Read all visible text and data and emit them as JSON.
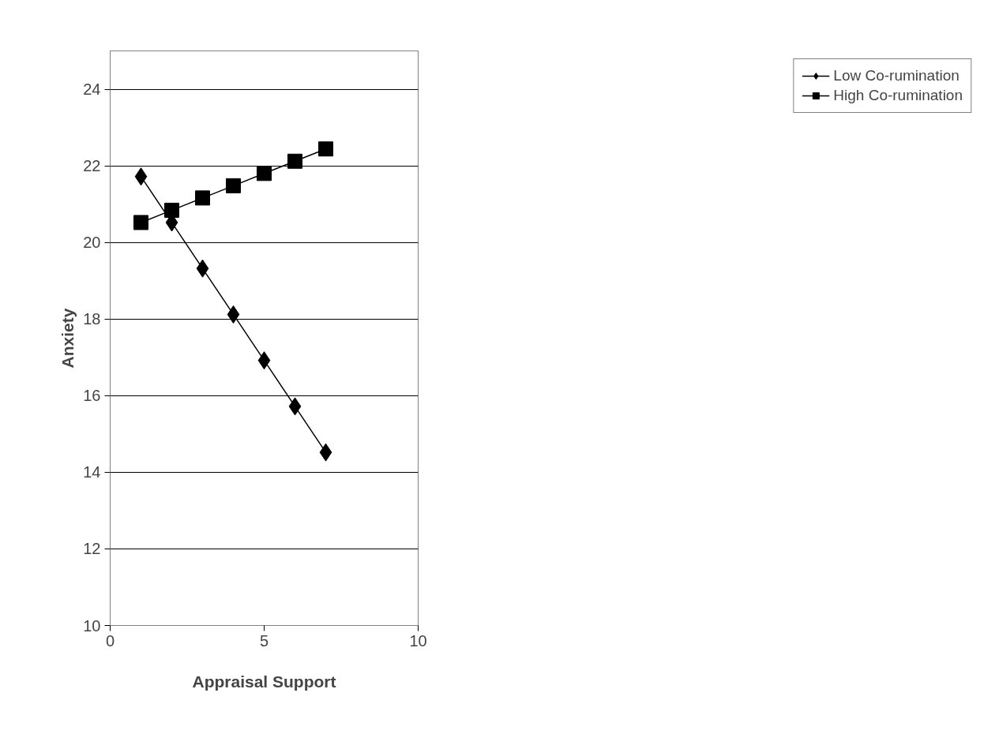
{
  "chart_data": {
    "type": "line",
    "xlabel": "Appraisal Support",
    "ylabel": "Anxiety",
    "x": [
      1,
      2,
      3,
      4,
      5,
      6,
      7
    ],
    "series": [
      {
        "name": "Low Co-rumination",
        "color": "#000000",
        "marker": "diamond",
        "values": [
          21.72,
          20.52,
          19.32,
          18.12,
          16.92,
          15.72,
          14.52
        ]
      },
      {
        "name": "High Co-rumination",
        "color": "#000000",
        "marker": "square",
        "values": [
          20.52,
          20.84,
          21.16,
          21.48,
          21.8,
          22.12,
          22.44
        ]
      }
    ],
    "xlim": [
      0,
      10
    ],
    "xticks": [
      0,
      5,
      10
    ],
    "ylim": [
      10,
      25
    ],
    "yticks": [
      10,
      12,
      14,
      16,
      18,
      20,
      22,
      24
    ],
    "grid": "y",
    "legend": "right",
    "line_style": "solid"
  }
}
